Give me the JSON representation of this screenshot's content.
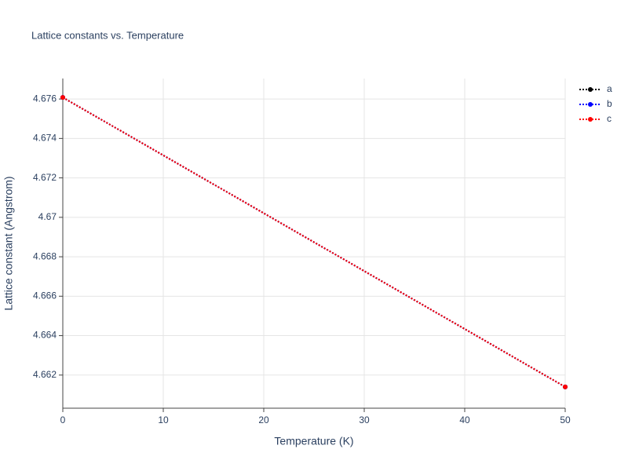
{
  "chart_data": {
    "type": "line",
    "title": "Lattice constants vs. Temperature",
    "x_label": "Temperature (K)",
    "y_label": "Lattice constant (Angstrom)",
    "x": [
      0,
      50
    ],
    "series": [
      {
        "name": "a",
        "color": "#000000",
        "values": [
          4.67608,
          4.6614
        ]
      },
      {
        "name": "b",
        "color": "#0000ff",
        "values": [
          4.67608,
          4.6614
        ]
      },
      {
        "name": "c",
        "color": "#ff0000",
        "values": [
          4.67608,
          4.6614
        ]
      }
    ],
    "xlim": [
      0,
      50
    ],
    "xticks": [
      0,
      10,
      20,
      30,
      40,
      50
    ],
    "ylim": [
      4.66032,
      4.67704
    ],
    "yticks": [
      4.662,
      4.664,
      4.666,
      4.668,
      4.67,
      4.672,
      4.674,
      4.676
    ],
    "grid": true,
    "legend": "top-right"
  }
}
